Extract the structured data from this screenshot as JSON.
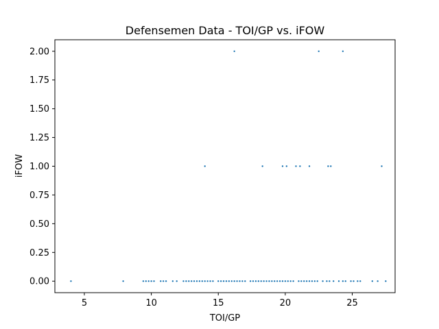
{
  "chart_data": {
    "type": "scatter",
    "title": "Defensemen Data - TOI/GP vs. iFOW",
    "xlabel": "TOI/GP",
    "ylabel": "iFOW",
    "xlim": [
      2.8,
      28.2
    ],
    "ylim": [
      -0.1,
      2.1
    ],
    "xticks": [
      5,
      10,
      15,
      20,
      25
    ],
    "xtick_labels": [
      "5",
      "10",
      "15",
      "20",
      "25"
    ],
    "yticks": [
      0.0,
      0.25,
      0.5,
      0.75,
      1.0,
      1.25,
      1.5,
      1.75,
      2.0
    ],
    "ytick_labels": [
      "0.00",
      "0.25",
      "0.50",
      "0.75",
      "1.00",
      "1.25",
      "1.50",
      "1.75",
      "2.00"
    ],
    "grid": false,
    "color": "#1f77b4",
    "points": [
      {
        "x": 4.0,
        "y": 0
      },
      {
        "x": 7.9,
        "y": 0
      },
      {
        "x": 9.4,
        "y": 0
      },
      {
        "x": 9.6,
        "y": 0
      },
      {
        "x": 9.8,
        "y": 0
      },
      {
        "x": 10.0,
        "y": 0
      },
      {
        "x": 10.2,
        "y": 0
      },
      {
        "x": 10.7,
        "y": 0
      },
      {
        "x": 10.9,
        "y": 0
      },
      {
        "x": 11.1,
        "y": 0
      },
      {
        "x": 11.6,
        "y": 0
      },
      {
        "x": 11.9,
        "y": 0
      },
      {
        "x": 12.4,
        "y": 0
      },
      {
        "x": 12.6,
        "y": 0
      },
      {
        "x": 12.8,
        "y": 0
      },
      {
        "x": 13.0,
        "y": 0
      },
      {
        "x": 13.2,
        "y": 0
      },
      {
        "x": 13.4,
        "y": 0
      },
      {
        "x": 13.6,
        "y": 0
      },
      {
        "x": 13.8,
        "y": 0
      },
      {
        "x": 14.0,
        "y": 0
      },
      {
        "x": 14.2,
        "y": 0
      },
      {
        "x": 14.4,
        "y": 0
      },
      {
        "x": 14.6,
        "y": 0
      },
      {
        "x": 15.0,
        "y": 0
      },
      {
        "x": 15.2,
        "y": 0
      },
      {
        "x": 15.4,
        "y": 0
      },
      {
        "x": 15.6,
        "y": 0
      },
      {
        "x": 15.8,
        "y": 0
      },
      {
        "x": 16.0,
        "y": 0
      },
      {
        "x": 16.2,
        "y": 0
      },
      {
        "x": 16.4,
        "y": 0
      },
      {
        "x": 16.6,
        "y": 0
      },
      {
        "x": 16.8,
        "y": 0
      },
      {
        "x": 17.0,
        "y": 0
      },
      {
        "x": 17.4,
        "y": 0
      },
      {
        "x": 17.6,
        "y": 0
      },
      {
        "x": 17.8,
        "y": 0
      },
      {
        "x": 18.0,
        "y": 0
      },
      {
        "x": 18.2,
        "y": 0
      },
      {
        "x": 18.4,
        "y": 0
      },
      {
        "x": 18.6,
        "y": 0
      },
      {
        "x": 18.8,
        "y": 0
      },
      {
        "x": 19.0,
        "y": 0
      },
      {
        "x": 19.2,
        "y": 0
      },
      {
        "x": 19.4,
        "y": 0
      },
      {
        "x": 19.6,
        "y": 0
      },
      {
        "x": 19.8,
        "y": 0
      },
      {
        "x": 20.0,
        "y": 0
      },
      {
        "x": 20.2,
        "y": 0
      },
      {
        "x": 20.4,
        "y": 0
      },
      {
        "x": 20.6,
        "y": 0
      },
      {
        "x": 21.0,
        "y": 0
      },
      {
        "x": 21.2,
        "y": 0
      },
      {
        "x": 21.4,
        "y": 0
      },
      {
        "x": 21.6,
        "y": 0
      },
      {
        "x": 21.8,
        "y": 0
      },
      {
        "x": 22.0,
        "y": 0
      },
      {
        "x": 22.2,
        "y": 0
      },
      {
        "x": 22.4,
        "y": 0
      },
      {
        "x": 22.8,
        "y": 0
      },
      {
        "x": 23.1,
        "y": 0
      },
      {
        "x": 23.3,
        "y": 0
      },
      {
        "x": 23.6,
        "y": 0
      },
      {
        "x": 24.0,
        "y": 0
      },
      {
        "x": 24.3,
        "y": 0
      },
      {
        "x": 24.5,
        "y": 0
      },
      {
        "x": 24.9,
        "y": 0
      },
      {
        "x": 25.1,
        "y": 0
      },
      {
        "x": 25.4,
        "y": 0
      },
      {
        "x": 25.6,
        "y": 0
      },
      {
        "x": 26.5,
        "y": 0
      },
      {
        "x": 26.9,
        "y": 0
      },
      {
        "x": 27.5,
        "y": 0
      },
      {
        "x": 14.0,
        "y": 1
      },
      {
        "x": 18.3,
        "y": 1
      },
      {
        "x": 19.8,
        "y": 1
      },
      {
        "x": 20.1,
        "y": 1
      },
      {
        "x": 20.8,
        "y": 1
      },
      {
        "x": 21.1,
        "y": 1
      },
      {
        "x": 21.8,
        "y": 1
      },
      {
        "x": 23.2,
        "y": 1
      },
      {
        "x": 23.4,
        "y": 1
      },
      {
        "x": 27.2,
        "y": 1
      },
      {
        "x": 16.2,
        "y": 2
      },
      {
        "x": 22.5,
        "y": 2
      },
      {
        "x": 24.3,
        "y": 2
      }
    ]
  }
}
